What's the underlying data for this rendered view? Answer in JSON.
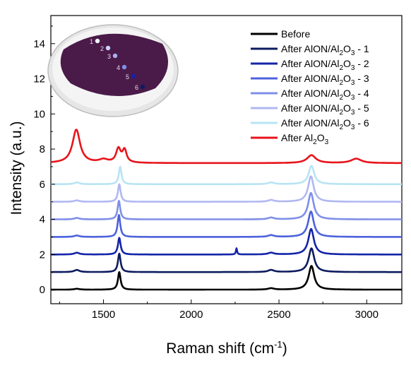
{
  "chart_data": {
    "type": "line",
    "xlabel_main": "Raman shift (cm",
    "xlabel_sup": "-1",
    "xlabel_end": ")",
    "ylabel": "Intensity (a.u.)",
    "xlim": [
      1200,
      3200
    ],
    "ylim": [
      -0.8,
      15.6
    ],
    "x_ticks": [
      1500,
      2000,
      2500,
      3000
    ],
    "y_ticks": [
      0,
      2,
      4,
      6,
      8,
      10,
      12,
      14
    ],
    "legend_position": "top-right",
    "series": [
      {
        "name": "Before",
        "color": "#000000",
        "offset": 0,
        "peaks": [
          {
            "x": 1348,
            "h": 0.05,
            "w": 18
          },
          {
            "x": 1590,
            "h": 1.0,
            "w": 9
          },
          {
            "x": 2455,
            "h": 0.08,
            "w": 20
          },
          {
            "x": 2685,
            "h": 1.35,
            "w": 19
          }
        ]
      },
      {
        "name": "After AlON/Al2O3 - 1",
        "color": "#0d1b5e",
        "offset": 1,
        "peaks": [
          {
            "x": 1348,
            "h": 0.12,
            "w": 18
          },
          {
            "x": 1590,
            "h": 1.05,
            "w": 9
          },
          {
            "x": 2455,
            "h": 0.12,
            "w": 20
          },
          {
            "x": 2685,
            "h": 1.35,
            "w": 19
          }
        ]
      },
      {
        "name": "After AlON/Al2O3 - 2",
        "color": "#1424a8",
        "offset": 2,
        "peaks": [
          {
            "x": 1348,
            "h": 0.1,
            "w": 18
          },
          {
            "x": 1590,
            "h": 0.95,
            "w": 9
          },
          {
            "x": 2258,
            "h": 0.35,
            "w": 4
          },
          {
            "x": 2455,
            "h": 0.1,
            "w": 20
          },
          {
            "x": 2683,
            "h": 1.45,
            "w": 19
          }
        ]
      },
      {
        "name": "After AlON/Al2O3 - 3",
        "color": "#4d62dc",
        "offset": 3,
        "peaks": [
          {
            "x": 1348,
            "h": 0.08,
            "w": 18
          },
          {
            "x": 1588,
            "h": 1.25,
            "w": 9
          },
          {
            "x": 2455,
            "h": 0.1,
            "w": 20
          },
          {
            "x": 2682,
            "h": 1.45,
            "w": 19
          }
        ]
      },
      {
        "name": "After AlON/Al2O3 - 4",
        "color": "#7f8fe8",
        "offset": 4,
        "peaks": [
          {
            "x": 1348,
            "h": 0.08,
            "w": 18
          },
          {
            "x": 1588,
            "h": 1.05,
            "w": 9
          },
          {
            "x": 2455,
            "h": 0.1,
            "w": 20
          },
          {
            "x": 2682,
            "h": 1.5,
            "w": 19
          }
        ]
      },
      {
        "name": "After AlON/Al2O3 - 5",
        "color": "#b0b8f2",
        "offset": 5,
        "peaks": [
          {
            "x": 1348,
            "h": 0.08,
            "w": 18
          },
          {
            "x": 1590,
            "h": 1.0,
            "w": 9
          },
          {
            "x": 2455,
            "h": 0.1,
            "w": 20
          },
          {
            "x": 2682,
            "h": 1.45,
            "w": 19
          }
        ]
      },
      {
        "name": "After AlON/Al2O3 - 6",
        "color": "#b8e4f4",
        "offset": 6,
        "peaks": [
          {
            "x": 1348,
            "h": 0.1,
            "w": 18
          },
          {
            "x": 1595,
            "h": 1.0,
            "w": 9
          },
          {
            "x": 2455,
            "h": 0.1,
            "w": 20
          },
          {
            "x": 2685,
            "h": 1.05,
            "w": 19
          }
        ]
      },
      {
        "name": "After Al2O3",
        "color": "#e8141c",
        "offset": 7.2,
        "peaks": [
          {
            "x": 1345,
            "h": 1.9,
            "w": 26
          },
          {
            "x": 1500,
            "h": 0.18,
            "w": 30
          },
          {
            "x": 1585,
            "h": 0.78,
            "w": 16
          },
          {
            "x": 1620,
            "h": 0.7,
            "w": 14
          },
          {
            "x": 2685,
            "h": 0.45,
            "w": 30
          },
          {
            "x": 2940,
            "h": 0.25,
            "w": 35
          }
        ]
      }
    ],
    "legend": [
      {
        "prefix": "Before",
        "sub": "",
        "suffix": "",
        "color": "#000000"
      },
      {
        "prefix": "After AlON/Al",
        "sub": "2",
        "mid": "O",
        "sub2": "3",
        "suffix": " - 1",
        "color": "#0d1b5e"
      },
      {
        "prefix": "After AlON/Al",
        "sub": "2",
        "mid": "O",
        "sub2": "3",
        "suffix": " - 2",
        "color": "#1424a8"
      },
      {
        "prefix": "After AlON/Al",
        "sub": "2",
        "mid": "O",
        "sub2": "3",
        "suffix": " - 3",
        "color": "#4d62dc"
      },
      {
        "prefix": "After AlON/Al",
        "sub": "2",
        "mid": "O",
        "sub2": "3",
        "suffix": " - 4",
        "color": "#7f8fe8"
      },
      {
        "prefix": "After AlON/Al",
        "sub": "2",
        "mid": "O",
        "sub2": "3",
        "suffix": " - 5",
        "color": "#b0b8f2"
      },
      {
        "prefix": "After AlON/Al",
        "sub": "2",
        "mid": "O",
        "sub2": "3",
        "suffix": " - 6",
        "color": "#b8e4f4"
      },
      {
        "prefix": "After Al",
        "sub": "2",
        "mid": "O",
        "sub2": "3",
        "suffix": "",
        "color": "#e8141c"
      }
    ]
  },
  "inset": {
    "description_icon": "wafer-photo",
    "spot_labels": [
      "1",
      "2",
      "3",
      "4",
      "5",
      "6"
    ],
    "wafer_color": "#4a1a48"
  }
}
